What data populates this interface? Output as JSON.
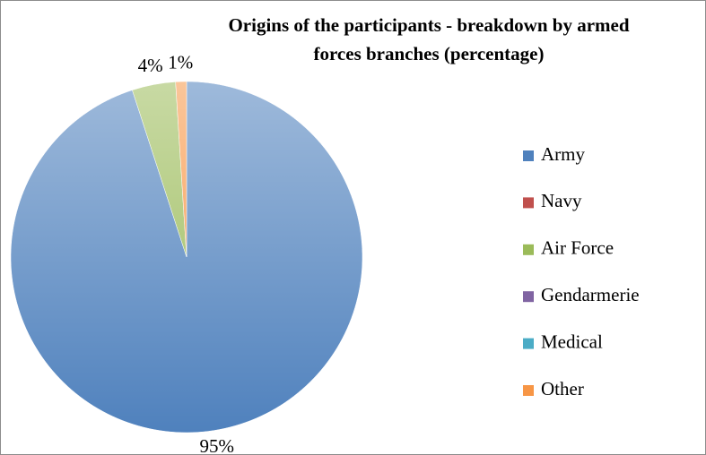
{
  "chart_data": {
    "type": "pie",
    "title": [
      "Origins of the participants - breakdown by armed",
      "forces branches (percentage)"
    ],
    "categories": [
      "Army",
      "Navy",
      "Air Force",
      "Gendarmerie",
      "Medical",
      "Other"
    ],
    "values": [
      95,
      0,
      4,
      0,
      0,
      1
    ],
    "value_labels": [
      "95%",
      null,
      "4%",
      null,
      null,
      "1%"
    ],
    "colors": [
      "#4f81bd",
      "#c0504d",
      "#9bbb59",
      "#8064a2",
      "#4bacc6",
      "#f79646"
    ],
    "legend": "right"
  }
}
